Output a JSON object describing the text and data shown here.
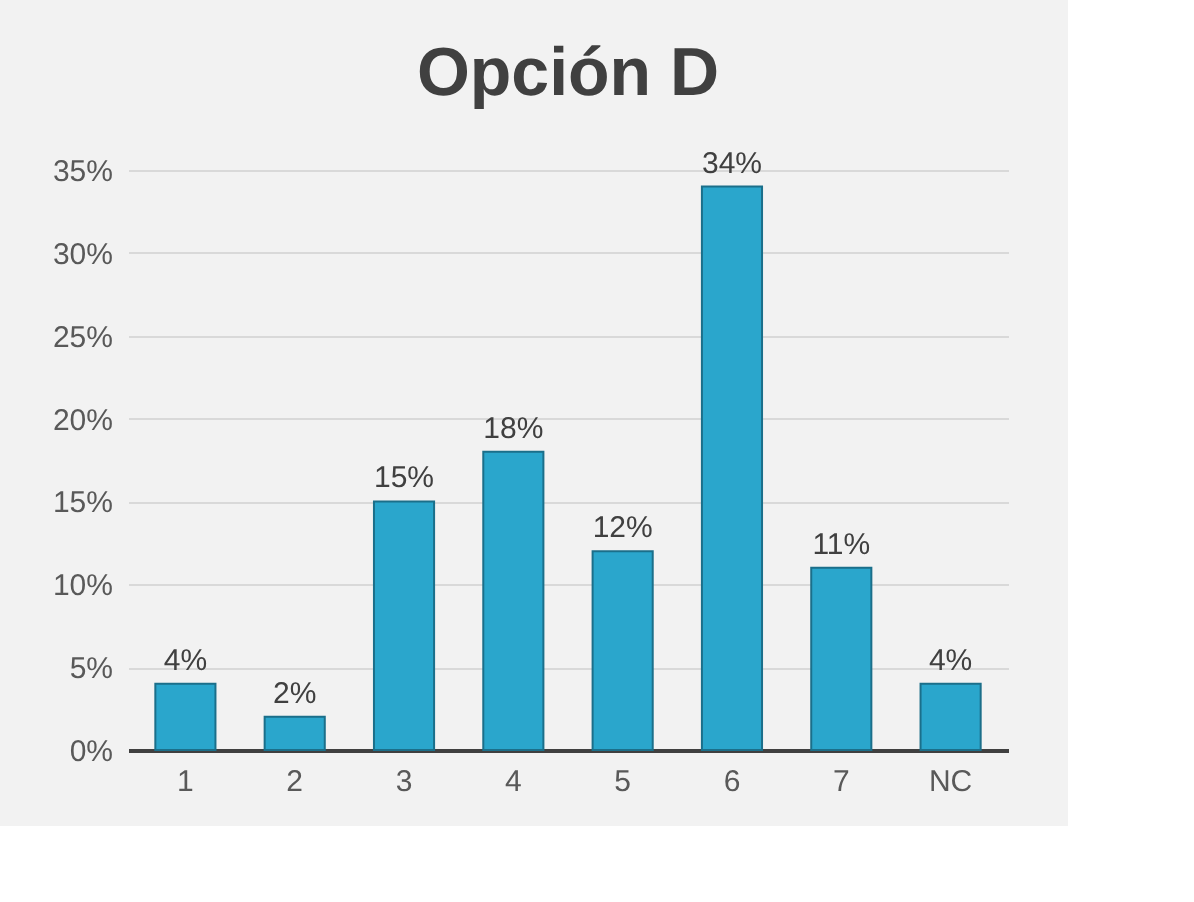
{
  "chart_data": {
    "type": "bar",
    "title": "Opción D",
    "categories": [
      "1",
      "2",
      "3",
      "4",
      "5",
      "6",
      "7",
      "NC"
    ],
    "values": [
      4,
      2,
      15,
      18,
      12,
      34,
      11,
      4
    ],
    "value_labels": [
      "4%",
      "2%",
      "15%",
      "18%",
      "12%",
      "34%",
      "11%",
      "4%"
    ],
    "color": "#2aa6cc",
    "ylim": [
      0,
      35
    ],
    "yticks": [
      {
        "value": 0,
        "label": "0%"
      },
      {
        "value": 5,
        "label": "5%"
      },
      {
        "value": 10,
        "label": "10%"
      },
      {
        "value": 15,
        "label": "15%"
      },
      {
        "value": 20,
        "label": "20%"
      },
      {
        "value": 25,
        "label": "25%"
      },
      {
        "value": 30,
        "label": "30%"
      },
      {
        "value": 35,
        "label": "35%"
      }
    ],
    "grid": true
  }
}
